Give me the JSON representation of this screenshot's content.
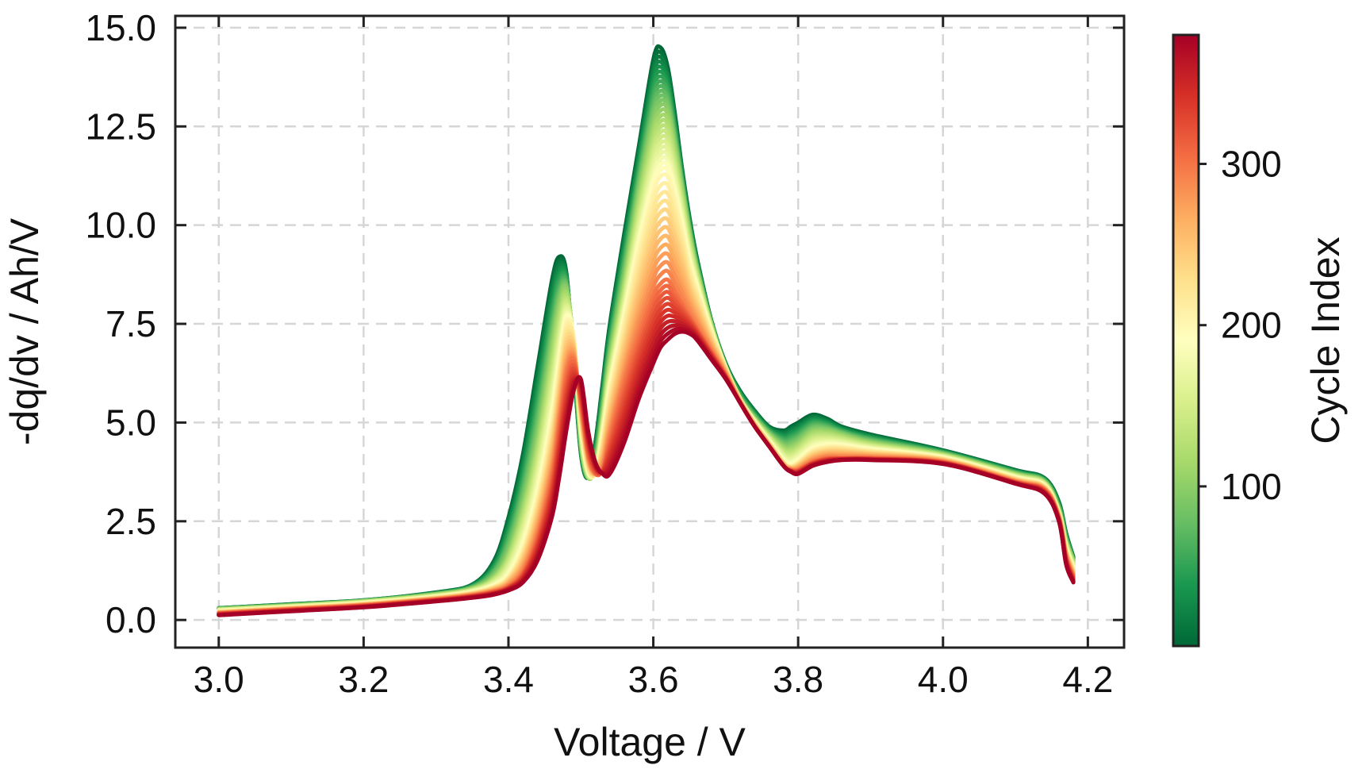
{
  "chart_data": {
    "type": "line",
    "title": "",
    "xlabel": "Voltage / V",
    "ylabel": "-dq/dv / Ah/V",
    "xlim": [
      2.94,
      4.25
    ],
    "ylim": [
      -0.7,
      15.3
    ],
    "xticks": [
      3.0,
      3.2,
      3.4,
      3.6,
      3.8,
      4.0,
      4.2
    ],
    "xtick_labels": [
      "3.0",
      "3.2",
      "3.4",
      "3.6",
      "3.8",
      "4.0",
      "4.2"
    ],
    "yticks": [
      0.0,
      2.5,
      5.0,
      7.5,
      10.0,
      12.5,
      15.0
    ],
    "ytick_labels": [
      "0.0",
      "2.5",
      "5.0",
      "7.5",
      "10.0",
      "12.5",
      "15.0"
    ],
    "grid": true,
    "legend": "none",
    "colormap": "RdYlGn_r",
    "colorbar": {
      "label": "Cycle Index",
      "range": [
        1,
        380
      ],
      "ticks": [
        100,
        200,
        300
      ],
      "tick_labels": [
        "100",
        "200",
        "300"
      ],
      "colors": [
        "#006837",
        "#1a9850",
        "#66bd63",
        "#a6d96a",
        "#d9ef8b",
        "#ffffbf",
        "#fee08b",
        "#fdae61",
        "#f46d43",
        "#d73027",
        "#a50026"
      ]
    },
    "x": [
      3.0,
      3.1,
      3.2,
      3.3,
      3.35,
      3.38,
      3.4,
      3.42,
      3.44,
      3.46,
      3.47,
      3.48,
      3.49,
      3.5,
      3.51,
      3.52,
      3.53,
      3.54,
      3.56,
      3.58,
      3.6,
      3.61,
      3.62,
      3.63,
      3.64,
      3.65,
      3.66,
      3.68,
      3.7,
      3.72,
      3.74,
      3.76,
      3.78,
      3.79,
      3.8,
      3.82,
      3.84,
      3.86,
      3.9,
      4.0,
      4.1,
      4.14,
      4.16,
      4.17,
      4.18
    ],
    "series": [
      {
        "cycle": 1,
        "values": [
          0.3,
          0.4,
          0.5,
          0.7,
          0.9,
          1.5,
          2.6,
          4.2,
          6.4,
          8.6,
          9.2,
          8.8,
          6.5,
          4.2,
          3.6,
          4.5,
          6.0,
          7.5,
          9.8,
          12.0,
          14.2,
          14.5,
          14.0,
          12.8,
          11.4,
          10.2,
          9.2,
          7.6,
          6.5,
          5.8,
          5.3,
          4.9,
          4.8,
          4.9,
          5.0,
          5.2,
          5.1,
          4.9,
          4.7,
          4.3,
          3.8,
          3.6,
          3.0,
          2.2,
          1.6
        ]
      },
      {
        "cycle": 100,
        "values": [
          0.28,
          0.37,
          0.48,
          0.65,
          0.8,
          1.1,
          1.7,
          2.9,
          4.6,
          6.9,
          8.0,
          8.4,
          7.0,
          4.5,
          3.6,
          3.9,
          5.2,
          6.6,
          8.6,
          10.8,
          12.6,
          13.0,
          12.9,
          12.0,
          10.9,
          9.8,
          8.9,
          7.5,
          6.4,
          5.6,
          5.1,
          4.7,
          4.4,
          4.4,
          4.5,
          4.8,
          4.8,
          4.7,
          4.5,
          4.2,
          3.7,
          3.5,
          2.8,
          2.0,
          1.5
        ]
      },
      {
        "cycle": 200,
        "values": [
          0.22,
          0.32,
          0.42,
          0.58,
          0.7,
          0.85,
          1.1,
          1.8,
          3.1,
          5.0,
          6.4,
          7.6,
          7.2,
          5.0,
          3.8,
          3.7,
          4.6,
          5.8,
          7.6,
          9.4,
          10.9,
          11.3,
          11.3,
          10.7,
          9.9,
          9.0,
          8.4,
          7.3,
          6.4,
          5.6,
          5.0,
          4.5,
          4.0,
          3.9,
          4.0,
          4.3,
          4.4,
          4.4,
          4.3,
          4.1,
          3.6,
          3.4,
          2.7,
          1.8,
          1.3
        ]
      },
      {
        "cycle": 300,
        "values": [
          0.17,
          0.27,
          0.37,
          0.52,
          0.62,
          0.72,
          0.85,
          1.2,
          2.1,
          3.6,
          4.9,
          6.2,
          6.6,
          5.5,
          4.2,
          3.7,
          3.8,
          4.6,
          6.0,
          7.2,
          8.2,
          8.5,
          8.6,
          8.3,
          8.0,
          7.7,
          7.4,
          6.8,
          6.2,
          5.5,
          4.9,
          4.4,
          3.9,
          3.8,
          3.8,
          4.0,
          4.1,
          4.1,
          4.1,
          4.0,
          3.5,
          3.3,
          2.6,
          1.6,
          1.1
        ]
      },
      {
        "cycle": 380,
        "values": [
          0.12,
          0.22,
          0.32,
          0.47,
          0.56,
          0.64,
          0.75,
          0.95,
          1.5,
          2.6,
          3.6,
          4.8,
          5.8,
          6.1,
          4.8,
          4.0,
          3.7,
          3.7,
          4.5,
          5.6,
          6.5,
          6.9,
          7.1,
          7.25,
          7.3,
          7.25,
          7.1,
          6.6,
          6.1,
          5.5,
          4.9,
          4.4,
          3.9,
          3.75,
          3.7,
          3.9,
          4.0,
          4.05,
          4.05,
          3.95,
          3.45,
          3.2,
          2.5,
          1.4,
          0.95
        ]
      }
    ]
  }
}
